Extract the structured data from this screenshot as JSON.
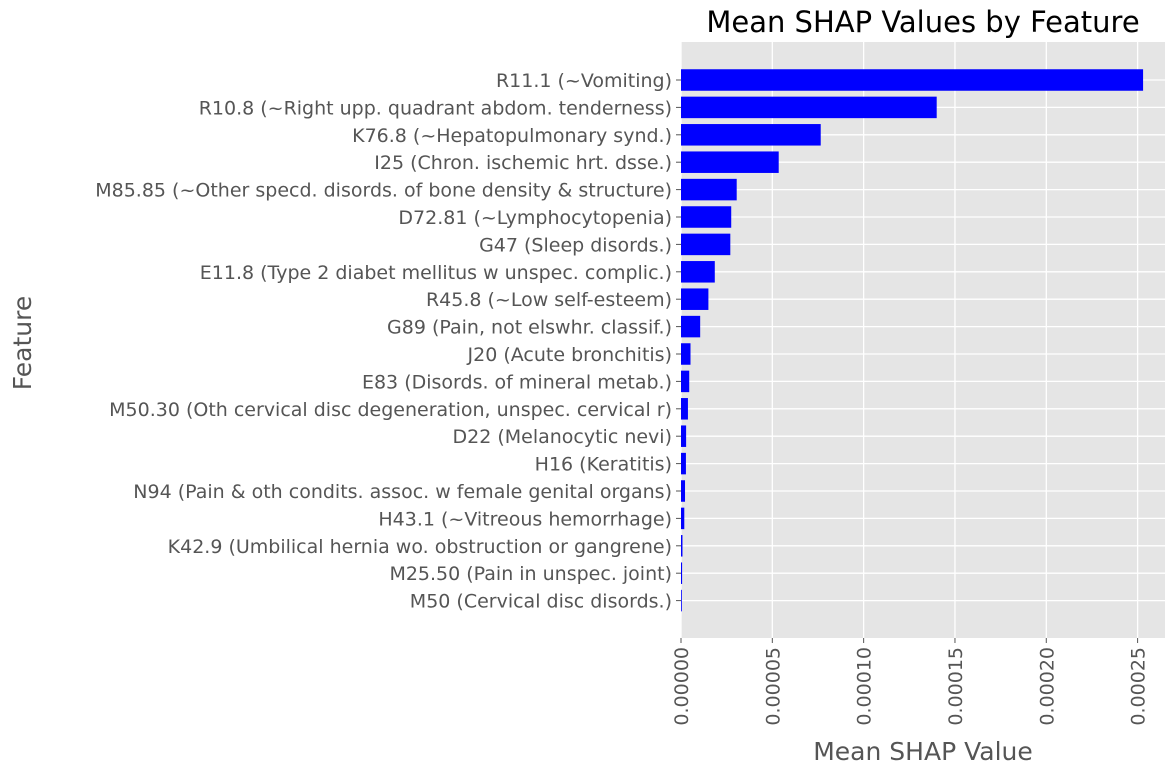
{
  "chart_data": {
    "type": "bar",
    "orientation": "horizontal",
    "title": "Mean SHAP Values by Feature",
    "xlabel": "Mean SHAP Value",
    "ylabel": "Feature",
    "xlim": [
      0,
      0.000265
    ],
    "xticks": [
      0,
      5e-05,
      0.0001,
      0.00015,
      0.0002,
      0.00025
    ],
    "xtick_labels": [
      "0.00000",
      "0.00005",
      "0.00010",
      "0.00015",
      "0.00020",
      "0.00025"
    ],
    "grid": true,
    "categories": [
      "R11.1 (~Vomiting)",
      "R10.8 (~Right upp. quadrant abdom. tenderness)",
      "K76.8 (~Hepatopulmonary synd.)",
      "I25 (Chron. ischemic hrt. dsse.)",
      "M85.85 (~Other specd. disords. of bone density & structure)",
      "D72.81 (~Lymphocytopenia)",
      "G47 (Sleep disords.)",
      "E11.8 (Type 2 diabet mellitus w unspec. complic.)",
      "R45.8 (~Low self-esteem)",
      "G89 (Pain, not elswhr. classif.)",
      "J20 (Acute bronchitis)",
      "E83 (Disords. of mineral metab.)",
      "M50.30 (Oth cervical disc degeneration, unspec. cervical r)",
      "D22 (Melanocytic nevi)",
      "H16 (Keratitis)",
      "N94 (Pain & oth condits. assoc. w female genital organs)",
      "H43.1 (~Vitreous hemorrhage)",
      "K42.9 (Umbilical hernia wo. obstruction or gangrene)",
      "M25.50 (Pain in unspec. joint)",
      "M50 (Cervical disc disords.)"
    ],
    "values": [
      0.000253,
      0.00014,
      7.65e-05,
      5.35e-05,
      3.05e-05,
      2.75e-05,
      2.7e-05,
      1.85e-05,
      1.5e-05,
      1.05e-05,
      5.2e-06,
      4.5e-06,
      3.8e-06,
      2.8e-06,
      2.7e-06,
      2.2e-06,
      1.8e-06,
      8e-07,
      6e-07,
      2e-07
    ],
    "colors": {
      "bar": "#0000ff",
      "plot_background": "#e5e5e5",
      "grid": "#ffffff",
      "text": "#555555",
      "title": "#000000"
    }
  }
}
